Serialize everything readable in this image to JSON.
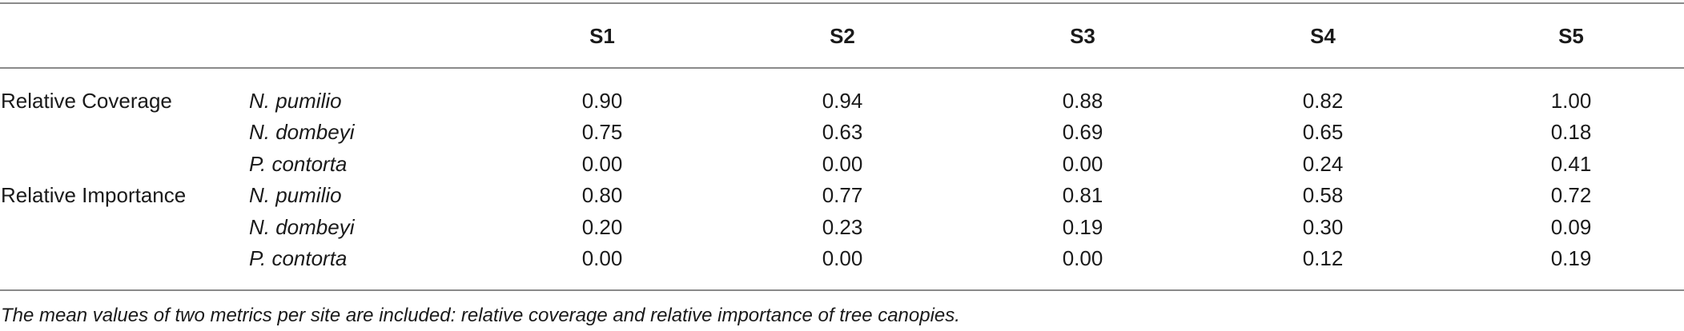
{
  "table": {
    "columns": [
      "S1",
      "S2",
      "S3",
      "S4",
      "S5"
    ],
    "rows": [
      {
        "metric": "Relative Coverage",
        "species": "N. pumilio",
        "values": [
          "0.90",
          "0.94",
          "0.88",
          "0.82",
          "1.00"
        ]
      },
      {
        "metric": "",
        "species": "N. dombeyi",
        "values": [
          "0.75",
          "0.63",
          "0.69",
          "0.65",
          "0.18"
        ]
      },
      {
        "metric": "",
        "species": "P. contorta",
        "values": [
          "0.00",
          "0.00",
          "0.00",
          "0.24",
          "0.41"
        ]
      },
      {
        "metric": "Relative Importance",
        "species": "N. pumilio",
        "values": [
          "0.80",
          "0.77",
          "0.81",
          "0.58",
          "0.72"
        ]
      },
      {
        "metric": "",
        "species": "N. dombeyi",
        "values": [
          "0.20",
          "0.23",
          "0.19",
          "0.30",
          "0.09"
        ]
      },
      {
        "metric": "",
        "species": "P. contorta",
        "values": [
          "0.00",
          "0.00",
          "0.00",
          "0.12",
          "0.19"
        ]
      }
    ]
  },
  "caption": "The mean values of two metrics per site are included: relative coverage and relative importance of tree canopies."
}
